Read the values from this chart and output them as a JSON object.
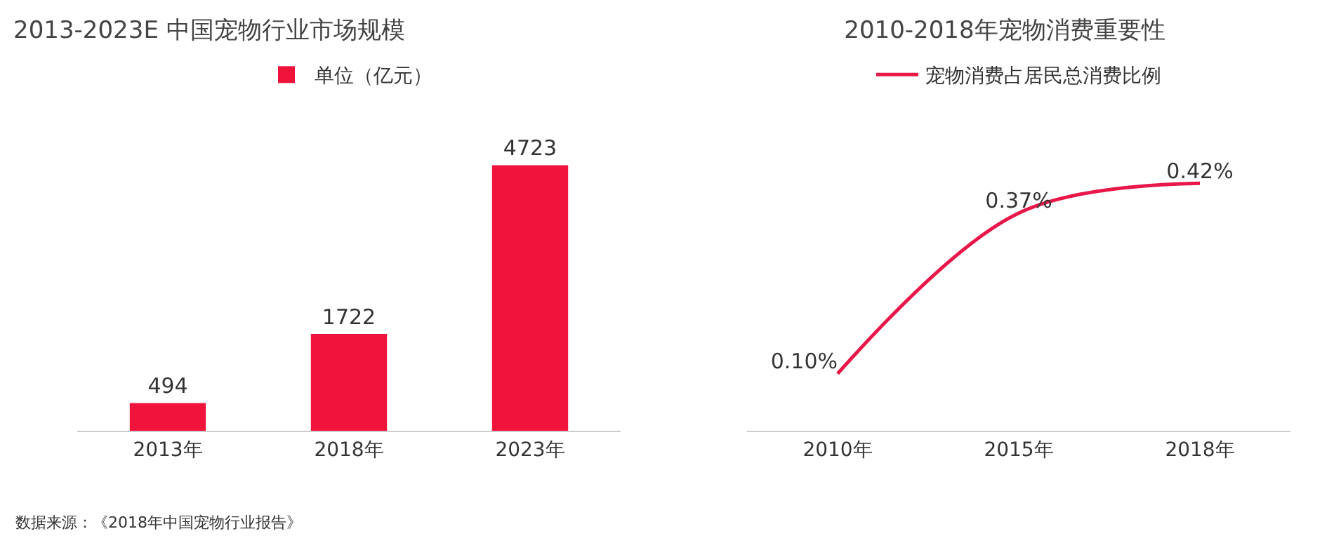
{
  "chart_data": [
    {
      "type": "bar",
      "title": "2013-2023E 中国宠物行业市场规模",
      "categories": [
        "2013年",
        "2018年",
        "2023年"
      ],
      "series": [
        {
          "name": "单位（亿元）",
          "color": "#f0143c",
          "values": [
            494,
            1722,
            4723
          ]
        }
      ],
      "data_labels": true,
      "legend": "top",
      "grid": false,
      "annotations": [
        "数据来源：《2018年中国宠物行业报告》"
      ]
    },
    {
      "type": "line",
      "title": "2010-2018年宠物消费重要性",
      "categories": [
        "2010年",
        "2015年",
        "2018年"
      ],
      "series": [
        {
          "name": "宠物消费占居民总消费比例",
          "color": "#e8174a",
          "values": [
            0.1,
            0.37,
            0.42
          ],
          "value_labels": [
            "0.10%",
            "0.37%",
            "0.42%"
          ]
        }
      ],
      "legend": "top",
      "grid": false,
      "marker": "none",
      "line_style": "solid"
    }
  ]
}
